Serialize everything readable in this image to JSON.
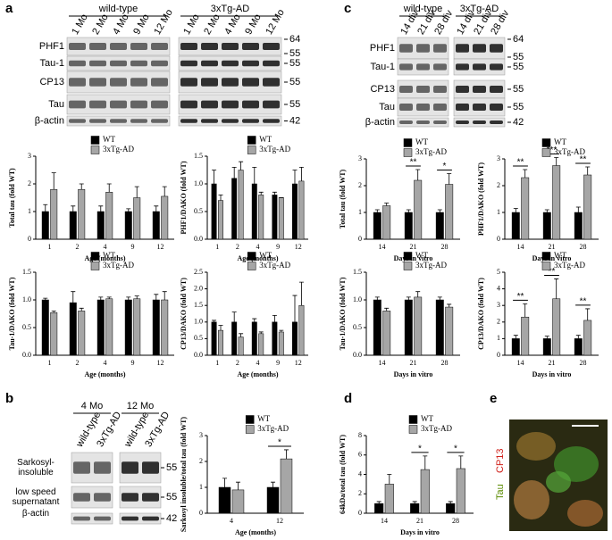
{
  "panels": {
    "letters": [
      "a",
      "b",
      "c",
      "d",
      "e"
    ],
    "e": {
      "labels": [
        "Tau",
        "CP13"
      ]
    }
  },
  "blots": [
    {
      "groups": [
        "wild-type",
        "3xTg-AD"
      ],
      "lanes": [
        "1 Mo",
        "2 Mo",
        "4 Mo",
        "9 Mo",
        "12 Mo"
      ],
      "rows": [
        "PHF1",
        "Tau-1",
        "CP13",
        "Tau",
        "β-actin"
      ],
      "mw": [
        [
          64,
          55
        ],
        [
          55
        ],
        [
          55
        ],
        [
          55
        ],
        [
          42
        ]
      ]
    },
    {
      "groups": [
        "wild-type",
        "3xTg-AD"
      ],
      "lanes": [
        "14 div",
        "21 div",
        "28 div"
      ],
      "rows": [
        "PHF1",
        "Tau-1",
        "CP13",
        "Tau",
        "β-actin"
      ],
      "mw": [
        [
          64,
          55
        ],
        [
          55
        ],
        [
          55
        ],
        [
          55
        ],
        [
          42
        ]
      ]
    },
    {
      "groups": [
        "4 Mo",
        "12 Mo"
      ],
      "lanes": [
        "wild-type",
        "3xTg-AD"
      ],
      "rows": [
        "Sarkosyl-insoluble",
        "low speed supernatant",
        "β-actin"
      ],
      "mw": [
        [
          55
        ],
        [
          55
        ],
        [
          42
        ]
      ]
    }
  ],
  "chart_data": [
    {
      "type": "bar",
      "ylabel": "Total tau (fold WT)",
      "xlabel": "Age (months)",
      "categories": [
        "1",
        "2",
        "4",
        "9",
        "12"
      ],
      "series": [
        {
          "name": "WT",
          "color": "#000000",
          "values": [
            1.0,
            1.0,
            1.0,
            1.0,
            1.0
          ],
          "errors": [
            0.25,
            0.2,
            0.2,
            0.1,
            0.2
          ]
        },
        {
          "name": "3xTg-AD",
          "color": "#a6a6a6",
          "values": [
            1.8,
            1.8,
            1.7,
            1.5,
            1.55
          ],
          "errors": [
            0.6,
            0.2,
            0.3,
            0.4,
            0.35
          ]
        }
      ],
      "ylim": [
        0,
        3
      ],
      "yticks": [
        0,
        1,
        2,
        3
      ],
      "annotations": [
        null,
        null,
        null,
        null,
        null
      ]
    },
    {
      "type": "bar",
      "ylabel": "PHF1/DAKO (fold WT)",
      "xlabel": "Age (months)",
      "categories": [
        "1",
        "2",
        "4",
        "9",
        "12"
      ],
      "series": [
        {
          "name": "WT",
          "color": "#000000",
          "values": [
            1.0,
            1.1,
            1.0,
            0.8,
            1.0
          ],
          "errors": [
            0.25,
            0.2,
            0.3,
            0.05,
            0.25
          ]
        },
        {
          "name": "3xTg-AD",
          "color": "#a6a6a6",
          "values": [
            0.7,
            1.25,
            0.8,
            0.75,
            1.05
          ],
          "errors": [
            0.1,
            0.15,
            0.05,
            0.0,
            0.25
          ]
        }
      ],
      "ylim": [
        0,
        1.5
      ],
      "yticks": [
        {
          "value": 0,
          "label": "0.0"
        },
        {
          "value": 0.5,
          "label": "0.5"
        },
        {
          "value": 1,
          "label": "1.0"
        },
        {
          "value": 1.5,
          "label": "1.5"
        }
      ],
      "annotations": [
        null,
        null,
        null,
        null,
        null
      ]
    },
    {
      "type": "bar",
      "ylabel": "Tau-1/DAKO (fold WT)",
      "xlabel": "Age (months)",
      "categories": [
        "1",
        "2",
        "4",
        "9",
        "12"
      ],
      "series": [
        {
          "name": "WT",
          "color": "#000000",
          "values": [
            1.0,
            0.95,
            1.0,
            1.0,
            1.0
          ],
          "errors": [
            0.03,
            0.2,
            0.05,
            0.05,
            0.1
          ]
        },
        {
          "name": "3xTg-AD",
          "color": "#a6a6a6",
          "values": [
            0.77,
            0.8,
            1.02,
            1.02,
            1.0
          ],
          "errors": [
            0.03,
            0.05,
            0.03,
            0.05,
            0.15
          ]
        }
      ],
      "ylim": [
        0,
        1.5
      ],
      "yticks": [
        {
          "value": 0,
          "label": "0.0"
        },
        {
          "value": 0.5,
          "label": "0.5"
        },
        {
          "value": 1,
          "label": "1.0"
        },
        {
          "value": 1.5,
          "label": "1.5"
        }
      ],
      "annotations": [
        null,
        null,
        null,
        null,
        null
      ]
    },
    {
      "type": "bar",
      "ylabel": "CP13/DAKO (fold WT)",
      "xlabel": "Age (months)",
      "categories": [
        "1",
        "2",
        "4",
        "9",
        "12"
      ],
      "series": [
        {
          "name": "WT",
          "color": "#000000",
          "values": [
            1.0,
            1.0,
            1.0,
            1.0,
            1.0
          ],
          "errors": [
            0.05,
            0.3,
            0.1,
            0.2,
            0.8
          ]
        },
        {
          "name": "3xTg-AD",
          "color": "#a6a6a6",
          "values": [
            0.75,
            0.55,
            0.65,
            0.7,
            1.5
          ],
          "errors": [
            0.15,
            0.1,
            0.05,
            0.05,
            0.7
          ]
        }
      ],
      "ylim": [
        0,
        2.5
      ],
      "yticks": [
        {
          "value": 0,
          "label": "0.0"
        },
        {
          "value": 0.5,
          "label": "0.5"
        },
        {
          "value": 1,
          "label": "1.0"
        },
        {
          "value": 1.5,
          "label": "1.5"
        },
        {
          "value": 2,
          "label": "2.0"
        },
        {
          "value": 2.5,
          "label": "2.5"
        }
      ],
      "annotations": [
        null,
        null,
        null,
        null,
        null
      ]
    },
    {
      "type": "bar",
      "ylabel": "Sarkosyl insoluble/total tau (fold WT)",
      "xlabel": "Age (months)",
      "categories": [
        "4",
        "12"
      ],
      "series": [
        {
          "name": "WT",
          "color": "#000000",
          "values": [
            1.0,
            1.0
          ],
          "errors": [
            0.35,
            0.2
          ]
        },
        {
          "name": "3xTg-AD",
          "color": "#a6a6a6",
          "values": [
            0.9,
            2.1
          ],
          "errors": [
            0.3,
            0.35
          ]
        }
      ],
      "ylim": [
        0,
        3
      ],
      "yticks": [
        0,
        1,
        2,
        3
      ],
      "annotations": [
        null,
        "*"
      ]
    },
    {
      "type": "bar",
      "ylabel": "Total tau (fold WT)",
      "xlabel": "Days in vitro",
      "categories": [
        "14",
        "21",
        "28"
      ],
      "series": [
        {
          "name": "WT",
          "color": "#000000",
          "values": [
            1.0,
            1.0,
            1.0
          ],
          "errors": [
            0.1,
            0.1,
            0.1
          ]
        },
        {
          "name": "3xTg-AD",
          "color": "#a6a6a6",
          "values": [
            1.25,
            2.2,
            2.05
          ],
          "errors": [
            0.1,
            0.4,
            0.4
          ]
        }
      ],
      "ylim": [
        0,
        3
      ],
      "yticks": [
        0,
        1,
        2,
        3
      ],
      "annotations": [
        null,
        "**",
        "*"
      ]
    },
    {
      "type": "bar",
      "ylabel": "PHF1/DAKO (fold WT)",
      "xlabel": "Days in vitro",
      "categories": [
        "14",
        "21",
        "28"
      ],
      "series": [
        {
          "name": "WT",
          "color": "#000000",
          "values": [
            1.0,
            1.0,
            1.0
          ],
          "errors": [
            0.15,
            0.1,
            0.2
          ]
        },
        {
          "name": "3xTg-AD",
          "color": "#a6a6a6",
          "values": [
            2.3,
            2.75,
            2.4
          ],
          "errors": [
            0.3,
            0.3,
            0.3
          ]
        }
      ],
      "ylim": [
        0,
        3
      ],
      "yticks": [
        0,
        1,
        2,
        3
      ],
      "annotations": [
        "**",
        "***",
        "**"
      ]
    },
    {
      "type": "bar",
      "ylabel": "Tau-1/DAKO (fold WT)",
      "xlabel": "Days in vitro",
      "categories": [
        "14",
        "21",
        "28"
      ],
      "series": [
        {
          "name": "WT",
          "color": "#000000",
          "values": [
            1.0,
            1.0,
            1.0
          ],
          "errors": [
            0.05,
            0.05,
            0.05
          ]
        },
        {
          "name": "3xTg-AD",
          "color": "#a6a6a6",
          "values": [
            0.8,
            1.05,
            0.87
          ],
          "errors": [
            0.05,
            0.1,
            0.05
          ]
        }
      ],
      "ylim": [
        0,
        1.5
      ],
      "yticks": [
        {
          "value": 0,
          "label": "0.0"
        },
        {
          "value": 0.5,
          "label": "0.5"
        },
        {
          "value": 1,
          "label": "1.0"
        },
        {
          "value": 1.5,
          "label": "1.5"
        }
      ],
      "annotations": [
        null,
        null,
        null
      ]
    },
    {
      "type": "bar",
      "ylabel": "CP13/DAKO (fold WT)",
      "xlabel": "Days in vitro",
      "categories": [
        "14",
        "21",
        "28"
      ],
      "series": [
        {
          "name": "WT",
          "color": "#000000",
          "values": [
            1.0,
            1.0,
            1.0
          ],
          "errors": [
            0.2,
            0.15,
            0.2
          ]
        },
        {
          "name": "3xTg-AD",
          "color": "#a6a6a6",
          "values": [
            2.3,
            3.4,
            2.1
          ],
          "errors": [
            0.8,
            1.2,
            0.7
          ]
        }
      ],
      "ylim": [
        0,
        5
      ],
      "yticks": [
        0,
        1,
        2,
        3,
        4,
        5
      ],
      "annotations": [
        "**",
        "**",
        "**"
      ]
    },
    {
      "type": "bar",
      "ylabel": "64kDa/total tau (fold WT)",
      "xlabel": "Days in vitro",
      "categories": [
        "14",
        "21",
        "28"
      ],
      "series": [
        {
          "name": "WT",
          "color": "#000000",
          "values": [
            1.0,
            1.0,
            1.0
          ],
          "errors": [
            0.2,
            0.2,
            0.2
          ]
        },
        {
          "name": "3xTg-AD",
          "color": "#a6a6a6",
          "values": [
            3.0,
            4.5,
            4.6
          ],
          "errors": [
            1.0,
            1.4,
            1.3
          ]
        }
      ],
      "ylim": [
        0,
        8
      ],
      "yticks": [
        0,
        2,
        4,
        6,
        8
      ],
      "annotations": [
        null,
        "*",
        "*"
      ]
    }
  ]
}
